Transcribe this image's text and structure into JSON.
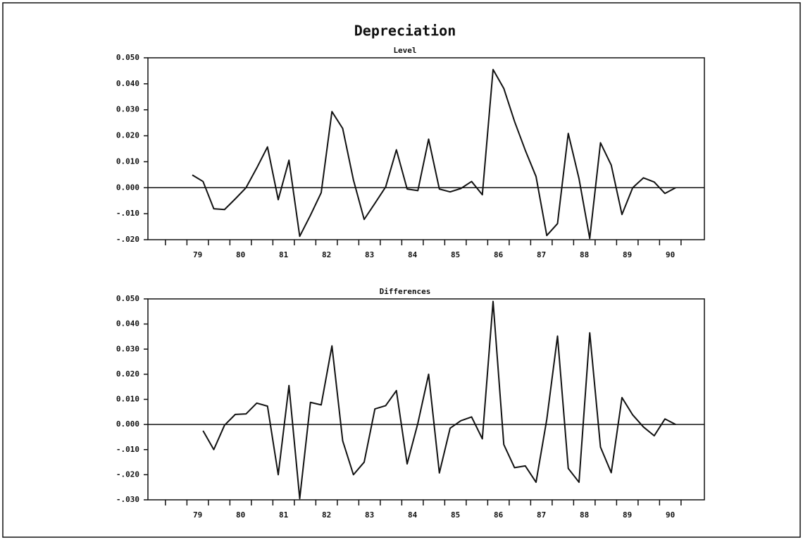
{
  "title": "Depreciation",
  "chart_data": [
    {
      "type": "line",
      "title": "Level",
      "categories": [
        "79",
        null,
        null,
        null,
        "80",
        null,
        null,
        null,
        "81",
        null,
        null,
        null,
        "82",
        null,
        null,
        null,
        "83",
        null,
        null,
        null,
        "84",
        null,
        null,
        null,
        "85",
        null,
        null,
        null,
        "86",
        null,
        null,
        null,
        "87",
        null,
        null,
        null,
        "88",
        null,
        null,
        null,
        "89",
        null,
        null,
        null,
        "90",
        null
      ],
      "series": [
        {
          "color": "#111111",
          "values": [
            0.0049,
            0.0024,
            -0.0081,
            -0.0084,
            -0.0043,
            0.0,
            0.0076,
            0.0157,
            -0.0046,
            0.0106,
            -0.0187,
            -0.0106,
            -0.0019,
            0.0293,
            0.0228,
            0.003,
            -0.0122,
            -0.006,
            0.0003,
            0.0146,
            -0.0005,
            -0.0011,
            0.0187,
            -0.0005,
            -0.0016,
            -0.0003,
            0.0024,
            -0.0027,
            0.0455,
            0.0382,
            0.0255,
            0.0144,
            0.0043,
            -0.0184,
            -0.0138,
            0.0209,
            0.0035,
            -0.0195,
            0.0173,
            0.0087,
            -0.0103,
            0.0,
            0.0038,
            0.0022,
            -0.0022,
            0.0
          ]
        }
      ],
      "ylim": [
        -0.02,
        0.05
      ],
      "yticks": [
        {
          "value": 0.05,
          "label": "0.050"
        },
        {
          "value": 0.04,
          "label": "0.040"
        },
        {
          "value": 0.03,
          "label": "0.030"
        },
        {
          "value": 0.02,
          "label": "0.020"
        },
        {
          "value": 0.01,
          "label": "0.010"
        },
        {
          "value": 0,
          "label": "0.000"
        },
        {
          "value": -0.01,
          "label": "-.010"
        },
        {
          "value": -0.02,
          "label": "-.020"
        }
      ],
      "zero_line": true
    },
    {
      "type": "line",
      "title": "Differences",
      "categories": [
        "79",
        null,
        null,
        null,
        "80",
        null,
        null,
        null,
        "81",
        null,
        null,
        null,
        "82",
        null,
        null,
        null,
        "83",
        null,
        null,
        null,
        "84",
        null,
        null,
        null,
        "85",
        null,
        null,
        null,
        "86",
        null,
        null,
        null,
        "87",
        null,
        null,
        null,
        "88",
        null,
        null,
        null,
        "89",
        null,
        null,
        null,
        "90",
        null
      ],
      "series": [
        {
          "color": "#111111",
          "values": [
            null,
            -0.0025,
            -0.01,
            -0.0003,
            0.004,
            0.0042,
            0.0085,
            0.0073,
            -0.02,
            0.0155,
            -0.0295,
            0.0088,
            0.0078,
            0.0313,
            -0.0065,
            -0.02,
            -0.015,
            0.0062,
            0.0075,
            0.0135,
            -0.0157,
            0.0005,
            0.02,
            -0.0193,
            -0.0015,
            0.0015,
            0.003,
            -0.0057,
            0.049,
            -0.008,
            -0.0172,
            -0.0165,
            -0.023,
            0.002,
            0.0352,
            -0.0175,
            -0.023,
            0.0365,
            -0.009,
            -0.0192,
            0.0107,
            0.0038,
            -0.001,
            -0.0045,
            0.0022,
            0.0
          ]
        }
      ],
      "ylim": [
        -0.03,
        0.05
      ],
      "yticks": [
        {
          "value": 0.05,
          "label": "0.050"
        },
        {
          "value": 0.04,
          "label": "0.040"
        },
        {
          "value": 0.03,
          "label": "0.030"
        },
        {
          "value": 0.02,
          "label": "0.020"
        },
        {
          "value": 0.01,
          "label": "0.010"
        },
        {
          "value": 0,
          "label": "0.000"
        },
        {
          "value": -0.01,
          "label": "-.010"
        },
        {
          "value": -0.02,
          "label": "-.020"
        },
        {
          "value": -0.03,
          "label": "-.030"
        }
      ],
      "zero_line": true
    }
  ]
}
